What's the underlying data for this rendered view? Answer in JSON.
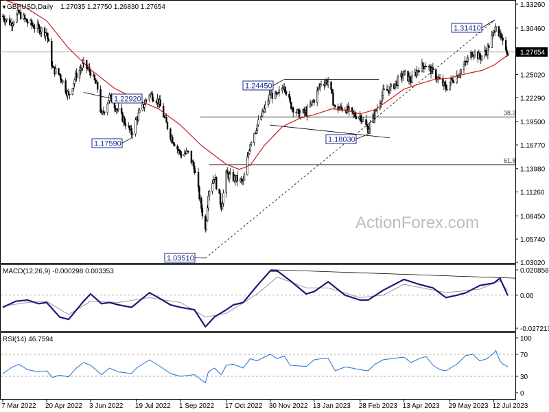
{
  "chart_data": [
    {
      "type": "candlestick",
      "header": "GBPUSD,Daily",
      "ohlc_text": "1.27035 1.27750 1.26830 1.27654",
      "current_price": "1.27654",
      "y_ticks": [
        "1.33260",
        "1.30460",
        "1.27654",
        "1.25020",
        "1.22290",
        "1.19500",
        "1.16770",
        "1.13980",
        "1.11260",
        "1.08450",
        "1.05740",
        "1.03020"
      ],
      "ylim": [
        1.0302,
        1.3326
      ],
      "annotations": [
        {
          "label": "1.31410",
          "price": 1.3141,
          "date": "13 Jul 2023"
        },
        {
          "label": "1.24450",
          "price": 1.2445,
          "date": "14 Dec 2022"
        },
        {
          "label": "1.22920",
          "price": 1.2292,
          "date": "27 May 2022"
        },
        {
          "label": "1.17590",
          "price": 1.1759,
          "date": "14 Jul 2022"
        },
        {
          "label": "1.18030",
          "price": 1.1803,
          "date": "8 Mar 2023"
        },
        {
          "label": "1.03510",
          "price": 1.0351,
          "date": "26 Sep 2022"
        }
      ],
      "fib_levels": [
        {
          "label": "38.2",
          "price": 1.2005
        },
        {
          "label": "61.8",
          "price": 1.1445
        }
      ],
      "watermark": "ActionForex.com",
      "close_path": [
        [
          "7 Mar 2022",
          1.318
        ],
        [
          "15 Mar 2022",
          1.31
        ],
        [
          "23 Mar 2022",
          1.322
        ],
        [
          "1 Apr 2022",
          1.311
        ],
        [
          "12 Apr 2022",
          1.304
        ],
        [
          "20 Apr 2022",
          1.299
        ],
        [
          "26 Apr 2022",
          1.257
        ],
        [
          "3 May 2022",
          1.25
        ],
        [
          "12 May 2022",
          1.225
        ],
        [
          "19 May 2022",
          1.248
        ],
        [
          "27 May 2022",
          1.262
        ],
        [
          "3 Jun 2022",
          1.253
        ],
        [
          "10 Jun 2022",
          1.234
        ],
        [
          "14 Jun 2022",
          1.201
        ],
        [
          "22 Jun 2022",
          1.224
        ],
        [
          "1 Jul 2022",
          1.207
        ],
        [
          "14 Jul 2022",
          1.181
        ],
        [
          "19 Jul 2022",
          1.198
        ],
        [
          "1 Aug 2022",
          1.228
        ],
        [
          "10 Aug 2022",
          1.219
        ],
        [
          "22 Aug 2022",
          1.179
        ],
        [
          "1 Sep 2022",
          1.157
        ],
        [
          "9 Sep 2022",
          1.158
        ],
        [
          "15 Sep 2022",
          1.14
        ],
        [
          "26 Sep 2022",
          1.068
        ],
        [
          "29 Sep 2022",
          1.113
        ],
        [
          "5 Oct 2022",
          1.131
        ],
        [
          "12 Oct 2022",
          1.096
        ],
        [
          "17 Oct 2022",
          1.133
        ],
        [
          "24 Oct 2022",
          1.129
        ],
        [
          "3 Nov 2022",
          1.124
        ],
        [
          "10 Nov 2022",
          1.171
        ],
        [
          "17 Nov 2022",
          1.191
        ],
        [
          "24 Nov 2022",
          1.209
        ],
        [
          "30 Nov 2022",
          1.227
        ],
        [
          "7 Dec 2022",
          1.224
        ],
        [
          "14 Dec 2022",
          1.239
        ],
        [
          "20 Dec 2022",
          1.215
        ],
        [
          "28 Dec 2022",
          1.204
        ],
        [
          "5 Jan 2023",
          1.206
        ],
        [
          "13 Jan 2023",
          1.221
        ],
        [
          "20 Jan 2023",
          1.241
        ],
        [
          "27 Jan 2023",
          1.242
        ],
        [
          "3 Feb 2023",
          1.21
        ],
        [
          "13 Feb 2023",
          1.211
        ],
        [
          "20 Feb 2023",
          1.203
        ],
        [
          "28 Feb 2023",
          1.202
        ],
        [
          "8 Mar 2023",
          1.186
        ],
        [
          "15 Mar 2023",
          1.205
        ],
        [
          "23 Mar 2023",
          1.229
        ],
        [
          "31 Mar 2023",
          1.234
        ],
        [
          "13 Apr 2023",
          1.251
        ],
        [
          "20 Apr 2023",
          1.243
        ],
        [
          "28 Apr 2023",
          1.258
        ],
        [
          "5 May 2023",
          1.262
        ],
        [
          "12 May 2023",
          1.252
        ],
        [
          "19 May 2023",
          1.243
        ],
        [
          "25 May 2023",
          1.234
        ],
        [
          "29 May 2023",
          1.241
        ],
        [
          "5 Jun 2023",
          1.249
        ],
        [
          "14 Jun 2023",
          1.264
        ],
        [
          "21 Jun 2023",
          1.277
        ],
        [
          "28 Jun 2023",
          1.27
        ],
        [
          "5 Jul 2023",
          1.278
        ],
        [
          "12 Jul 2023",
          1.299
        ],
        [
          "14 Jul 2023",
          1.311
        ],
        [
          "18 Jul 2023",
          1.294
        ],
        [
          "21 Jul 2023",
          1.286
        ],
        [
          "24 Jul 2023",
          1.282
        ],
        [
          "26 Jul 2023",
          1.276
        ]
      ],
      "sma_path": [
        [
          "7 Mar 2022",
          1.338
        ],
        [
          "28 Mar 2022",
          1.33
        ],
        [
          "20 Apr 2022",
          1.313
        ],
        [
          "12 May 2022",
          1.281
        ],
        [
          "3 Jun 2022",
          1.256
        ],
        [
          "27 Jun 2022",
          1.234
        ],
        [
          "19 Jul 2022",
          1.221
        ],
        [
          "10 Aug 2022",
          1.21
        ],
        [
          "1 Sep 2022",
          1.191
        ],
        [
          "22 Sep 2022",
          1.167
        ],
        [
          "17 Oct 2022",
          1.145
        ],
        [
          "30 Oct 2022",
          1.139
        ],
        [
          "10 Nov 2022",
          1.144
        ],
        [
          "24 Nov 2022",
          1.167
        ],
        [
          "12 Dec 2022",
          1.189
        ],
        [
          "30 Dec 2022",
          1.199
        ],
        [
          "13 Jan 2023",
          1.203
        ],
        [
          "31 Jan 2023",
          1.21
        ],
        [
          "15 Feb 2023",
          1.208
        ],
        [
          "28 Feb 2023",
          1.204
        ],
        [
          "15 Mar 2023",
          1.209
        ],
        [
          "31 Mar 2023",
          1.222
        ],
        [
          "13 Apr 2023",
          1.233
        ],
        [
          "28 Apr 2023",
          1.239
        ],
        [
          "12 May 2023",
          1.244
        ],
        [
          "29 May 2023",
          1.246
        ],
        [
          "14 Jun 2023",
          1.251
        ],
        [
          "30 Jun 2023",
          1.255
        ],
        [
          "12 Jul 2023",
          1.261
        ],
        [
          "26 Jul 2023",
          1.273
        ]
      ],
      "x_ticks": [
        "7 Mar 2022",
        "20 Apr 2022",
        "3 Jun 2022",
        "19 Jul 2022",
        "1 Sep 2022",
        "17 Oct 2022",
        "30 Nov 2022",
        "13 Jan 2023",
        "28 Feb 2023",
        "13 Apr 2023",
        "29 May 2023",
        "12 Jul 2023"
      ]
    },
    {
      "type": "line",
      "header": "MACD(12,26,9) -0.000298 0.003353",
      "y_ticks": [
        "0.020858",
        "0.00",
        "-0.027213"
      ],
      "ylim": [
        -0.027213,
        0.020858
      ],
      "series": [
        {
          "name": "MACD",
          "values": [
            [
              "7 Mar 2022",
              -0.01
            ],
            [
              "20 Mar 2022",
              -0.005
            ],
            [
              "1 Apr 2022",
              -0.004
            ],
            [
              "12 Apr 2022",
              -0.007
            ],
            [
              "20 Apr 2022",
              -0.006
            ],
            [
              "3 May 2022",
              -0.018
            ],
            [
              "12 May 2022",
              -0.02
            ],
            [
              "27 May 2022",
              -0.005
            ],
            [
              "3 Jun 2022",
              0.001
            ],
            [
              "14 Jun 2022",
              -0.007
            ],
            [
              "22 Jun 2022",
              -0.006
            ],
            [
              "1 Jul 2022",
              -0.008
            ],
            [
              "14 Jul 2022",
              -0.01
            ],
            [
              "1 Aug 2022",
              0.002
            ],
            [
              "10 Aug 2022",
              -0.002
            ],
            [
              "22 Aug 2022",
              -0.008
            ],
            [
              "1 Sep 2022",
              -0.01
            ],
            [
              "15 Sep 2022",
              -0.012
            ],
            [
              "26 Sep 2022",
              -0.026
            ],
            [
              "5 Oct 2022",
              -0.018
            ],
            [
              "17 Oct 2022",
              -0.012
            ],
            [
              "24 Oct 2022",
              -0.008
            ],
            [
              "3 Nov 2022",
              -0.006
            ],
            [
              "17 Nov 2022",
              0.008
            ],
            [
              "30 Nov 2022",
              0.02
            ],
            [
              "7 Dec 2022",
              0.02
            ],
            [
              "20 Dec 2022",
              0.012
            ],
            [
              "5 Jan 2023",
              0.001
            ],
            [
              "13 Jan 2023",
              0.003
            ],
            [
              "27 Jan 2023",
              0.011
            ],
            [
              "13 Feb 2023",
              0.0
            ],
            [
              "28 Feb 2023",
              -0.004
            ],
            [
              "8 Mar 2023",
              -0.004
            ],
            [
              "23 Mar 2023",
              0.004
            ],
            [
              "13 Apr 2023",
              0.013
            ],
            [
              "28 Apr 2023",
              0.009
            ],
            [
              "12 May 2023",
              0.006
            ],
            [
              "25 May 2023",
              -0.002
            ],
            [
              "5 Jun 2023",
              0.0
            ],
            [
              "14 Jun 2023",
              0.002
            ],
            [
              "28 Jun 2023",
              0.008
            ],
            [
              "12 Jul 2023",
              0.01
            ],
            [
              "18 Jul 2023",
              0.014
            ],
            [
              "26 Jul 2023",
              -0.0003
            ]
          ]
        },
        {
          "name": "Signal",
          "values": [
            [
              "7 Mar 2022",
              -0.009
            ],
            [
              "1 Apr 2022",
              -0.006
            ],
            [
              "20 Apr 2022",
              -0.005
            ],
            [
              "12 May 2022",
              -0.016
            ],
            [
              "3 Jun 2022",
              -0.005
            ],
            [
              "1 Jul 2022",
              -0.006
            ],
            [
              "1 Aug 2022",
              -0.002
            ],
            [
              "1 Sep 2022",
              -0.006
            ],
            [
              "26 Sep 2022",
              -0.018
            ],
            [
              "17 Oct 2022",
              -0.015
            ],
            [
              "17 Nov 2022",
              0.001
            ],
            [
              "7 Dec 2022",
              0.015
            ],
            [
              "5 Jan 2023",
              0.006
            ],
            [
              "27 Jan 2023",
              0.006
            ],
            [
              "28 Feb 2023",
              -0.002
            ],
            [
              "23 Mar 2023",
              0.0
            ],
            [
              "13 Apr 2023",
              0.009
            ],
            [
              "25 May 2023",
              0.002
            ],
            [
              "28 Jun 2023",
              0.005
            ],
            [
              "18 Jul 2023",
              0.012
            ],
            [
              "26 Jul 2023",
              0.0034
            ]
          ]
        }
      ],
      "trendline": [
        [
          "30 Nov 2022",
          0.021
        ],
        [
          "26 Jul 2023",
          0.014
        ]
      ]
    },
    {
      "type": "line",
      "header": "RSI(14) 46.7594",
      "y_ticks": [
        "100",
        "70",
        "30",
        "0"
      ],
      "ylim": [
        0,
        100
      ],
      "series": [
        {
          "name": "RSI(14)",
          "values": [
            [
              "7 Mar 2022",
              35
            ],
            [
              "15 Mar 2022",
              45
            ],
            [
              "23 Mar 2022",
              52
            ],
            [
              "1 Apr 2022",
              42
            ],
            [
              "12 Apr 2022",
              38
            ],
            [
              "20 Apr 2022",
              40
            ],
            [
              "26 Apr 2022",
              28
            ],
            [
              "3 May 2022",
              32
            ],
            [
              "12 May 2022",
              29
            ],
            [
              "19 May 2022",
              44
            ],
            [
              "27 May 2022",
              55
            ],
            [
              "3 Jun 2022",
              50
            ],
            [
              "14 Jun 2022",
              33
            ],
            [
              "22 Jun 2022",
              45
            ],
            [
              "1 Jul 2022",
              38
            ],
            [
              "14 Jul 2022",
              35
            ],
            [
              "19 Jul 2022",
              45
            ],
            [
              "1 Aug 2022",
              60
            ],
            [
              "10 Aug 2022",
              50
            ],
            [
              "22 Aug 2022",
              35
            ],
            [
              "1 Sep 2022",
              30
            ],
            [
              "15 Sep 2022",
              33
            ],
            [
              "26 Sep 2022",
              18
            ],
            [
              "29 Sep 2022",
              38
            ],
            [
              "5 Oct 2022",
              45
            ],
            [
              "12 Oct 2022",
              33
            ],
            [
              "17 Oct 2022",
              50
            ],
            [
              "24 Oct 2022",
              52
            ],
            [
              "3 Nov 2022",
              45
            ],
            [
              "10 Nov 2022",
              62
            ],
            [
              "17 Nov 2022",
              58
            ],
            [
              "24 Nov 2022",
              65
            ],
            [
              "30 Nov 2022",
              70
            ],
            [
              "7 Dec 2022",
              62
            ],
            [
              "14 Dec 2022",
              67
            ],
            [
              "20 Dec 2022",
              50
            ],
            [
              "5 Jan 2023",
              48
            ],
            [
              "13 Jan 2023",
              60
            ],
            [
              "20 Jan 2023",
              62
            ],
            [
              "27 Jan 2023",
              63
            ],
            [
              "3 Feb 2023",
              40
            ],
            [
              "13 Feb 2023",
              47
            ],
            [
              "20 Feb 2023",
              45
            ],
            [
              "28 Feb 2023",
              42
            ],
            [
              "8 Mar 2023",
              40
            ],
            [
              "15 Mar 2023",
              52
            ],
            [
              "23 Mar 2023",
              60
            ],
            [
              "31 Mar 2023",
              62
            ],
            [
              "13 Apr 2023",
              65
            ],
            [
              "20 Apr 2023",
              55
            ],
            [
              "28 Apr 2023",
              62
            ],
            [
              "5 May 2023",
              66
            ],
            [
              "12 May 2023",
              50
            ],
            [
              "19 May 2023",
              42
            ],
            [
              "25 May 2023",
              40
            ],
            [
              "5 Jun 2023",
              52
            ],
            [
              "14 Jun 2023",
              68
            ],
            [
              "21 Jun 2023",
              70
            ],
            [
              "28 Jun 2023",
              58
            ],
            [
              "5 Jul 2023",
              62
            ],
            [
              "12 Jul 2023",
              72
            ],
            [
              "14 Jul 2023",
              77
            ],
            [
              "18 Jul 2023",
              58
            ],
            [
              "21 Jul 2023",
              52
            ],
            [
              "24 Jul 2023",
              50
            ],
            [
              "26 Jul 2023",
              46.76
            ]
          ]
        }
      ]
    }
  ]
}
